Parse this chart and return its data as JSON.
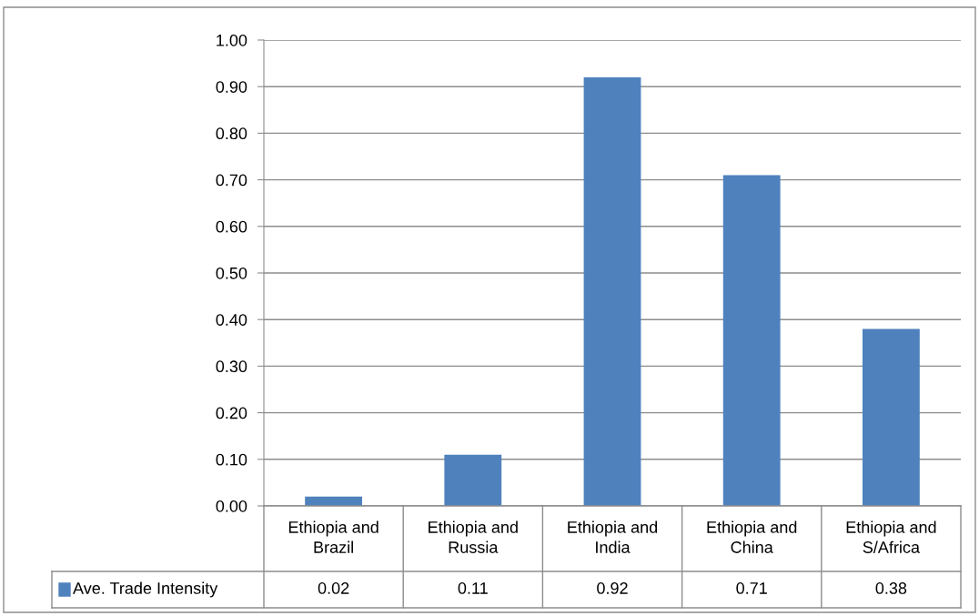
{
  "chart_data": {
    "type": "bar",
    "categories": [
      "Ethiopia and Brazil",
      "Ethiopia and Russia",
      "Ethiopia and India",
      "Ethiopia and China",
      "Ethiopia and S/Africa"
    ],
    "series": [
      {
        "name": "Ave. Trade Intensity",
        "color": "#4f81bd",
        "values": [
          0.02,
          0.11,
          0.92,
          0.71,
          0.38
        ]
      }
    ],
    "ylim": [
      0,
      1
    ],
    "yticks": [
      {
        "value": 0,
        "label": "0.00"
      },
      {
        "value": 0.1,
        "label": "0.10"
      },
      {
        "value": 0.2,
        "label": "0.20"
      },
      {
        "value": 0.3,
        "label": "0.30"
      },
      {
        "value": 0.4,
        "label": "0.40"
      },
      {
        "value": 0.5,
        "label": "0.50"
      },
      {
        "value": 0.6,
        "label": "0.60"
      },
      {
        "value": 0.7,
        "label": "0.70"
      },
      {
        "value": 0.8,
        "label": "0.80"
      },
      {
        "value": 0.9,
        "label": "0.90"
      },
      {
        "value": 1,
        "label": "1.00"
      }
    ],
    "grid": "y",
    "legend": "bottom",
    "data_labels": true
  }
}
